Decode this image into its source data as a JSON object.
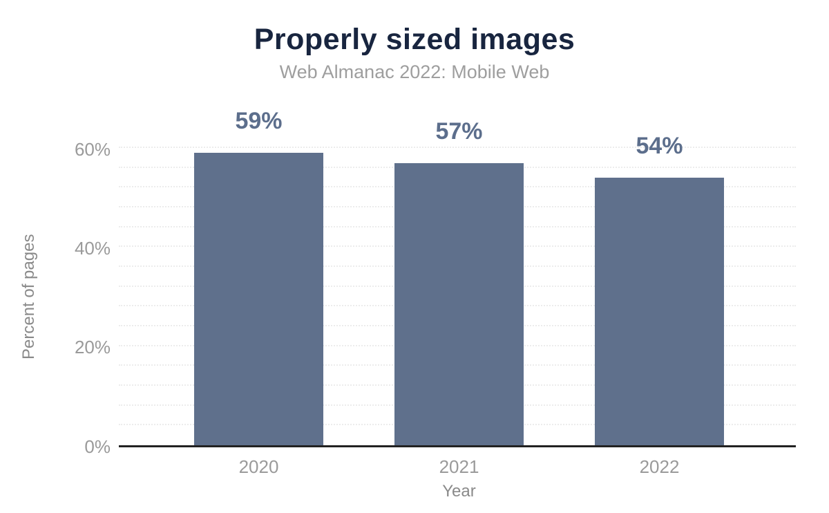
{
  "chart_data": {
    "type": "bar",
    "title": "Properly sized images",
    "subtitle": "Web Almanac 2022: Mobile Web",
    "categories": [
      "2020",
      "2021",
      "2022"
    ],
    "values": [
      59,
      57,
      54
    ],
    "value_labels": [
      "59%",
      "57%",
      "54%"
    ],
    "xlabel": "Year",
    "ylabel": "Percent of pages",
    "ylim": [
      0,
      60
    ],
    "yticks": [
      0,
      20,
      40,
      60
    ],
    "ytick_labels": [
      "0%",
      "20%",
      "40%",
      "60%"
    ],
    "minor_grid_step": 4,
    "grid": "minor dotted horizontal gridlines every 4%, solid dark baseline at 0%",
    "legend": "none",
    "colors": {
      "bar": "#5f708c",
      "value_label": "#5c6e8c",
      "title": "#18253f",
      "subtitle": "#9e9e9e",
      "tick_label": "#9a9a9a",
      "axis_title": "#8a8a8a",
      "gridline": "#ececec",
      "baseline": "#222222",
      "background": "#ffffff"
    }
  }
}
